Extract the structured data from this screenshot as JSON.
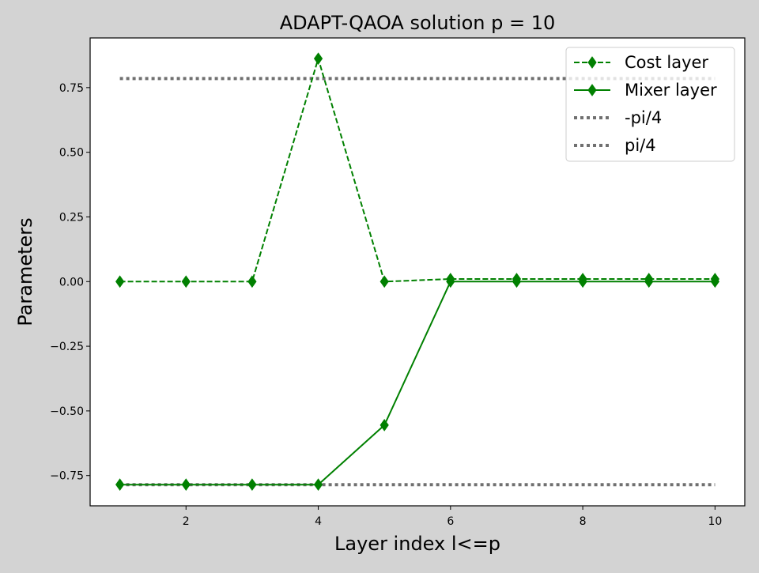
{
  "chart_data": {
    "type": "line",
    "title": "ADAPT-QAOA solution p = 10",
    "xlabel": "Layer index l<=p",
    "ylabel": "Parameters",
    "xlim": [
      0.55,
      10.45
    ],
    "ylim": [
      -0.867,
      0.942
    ],
    "x_ticks": [
      2,
      4,
      6,
      8,
      10
    ],
    "x_tick_labels": [
      "2",
      "4",
      "6",
      "8",
      "10"
    ],
    "y_ticks": [
      -0.75,
      -0.5,
      -0.25,
      0.0,
      0.25,
      0.5,
      0.75
    ],
    "y_tick_labels": [
      "−0.75",
      "−0.50",
      "−0.25",
      "0.00",
      "0.25",
      "0.50",
      "0.75"
    ],
    "grid": false,
    "legend_position": "upper right",
    "x": [
      1,
      2,
      3,
      4,
      5,
      6,
      7,
      8,
      9,
      10
    ],
    "series": [
      {
        "name": "Cost layer",
        "values": [
          0.0,
          0.0,
          0.0,
          0.862,
          0.0,
          0.01,
          0.01,
          0.01,
          0.01,
          0.01
        ],
        "color": "#008000",
        "linestyle": "dashed",
        "marker": "thin_diamond"
      },
      {
        "name": "Mixer layer",
        "values": [
          -0.785,
          -0.785,
          -0.785,
          -0.785,
          -0.555,
          0.0,
          0.0,
          0.0,
          0.0,
          0.0
        ],
        "color": "#008000",
        "linestyle": "solid",
        "marker": "thin_diamond"
      },
      {
        "name": "-pi/4",
        "values": [
          -0.785,
          -0.785,
          -0.785,
          -0.785,
          -0.785,
          -0.785,
          -0.785,
          -0.785,
          -0.785,
          -0.785
        ],
        "color": "#707070",
        "linestyle": "dotted",
        "marker": "none"
      },
      {
        "name": "pi/4",
        "values": [
          0.785,
          0.785,
          0.785,
          0.785,
          0.785,
          0.785,
          0.785,
          0.785,
          0.785,
          0.785
        ],
        "color": "#707070",
        "linestyle": "dotted",
        "marker": "none"
      }
    ]
  }
}
